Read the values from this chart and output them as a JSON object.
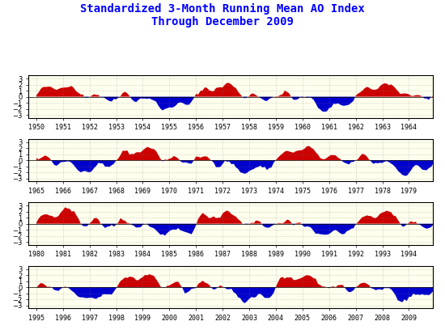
{
  "title_line1": "Standardized 3-Month Running Mean AO Index",
  "title_line2": "Through December 2009",
  "title_color": "blue",
  "title_fontsize": 10,
  "pos_color": "#CC0000",
  "neg_color": "#0000CC",
  "background_color": "#FFFFEE",
  "ylim": [
    -3.5,
    3.5
  ],
  "yticks": [
    -3,
    -2,
    -1,
    0,
    1,
    2,
    3
  ],
  "panels": [
    {
      "start_year": 1950,
      "end_year": 1964,
      "xticks": [
        1950,
        1951,
        1952,
        1953,
        1954,
        1955,
        1956,
        1957,
        1958,
        1959,
        1960,
        1961,
        1962,
        1963,
        1964
      ]
    },
    {
      "start_year": 1965,
      "end_year": 1979,
      "xticks": [
        1965,
        1966,
        1967,
        1968,
        1969,
        1970,
        1971,
        1972,
        1973,
        1974,
        1975,
        1976,
        1977,
        1978,
        1979
      ]
    },
    {
      "start_year": 1980,
      "end_year": 1994,
      "xticks": [
        1980,
        1981,
        1982,
        1983,
        1984,
        1985,
        1986,
        1987,
        1988,
        1989,
        1990,
        1991,
        1992,
        1993,
        1994
      ]
    },
    {
      "start_year": 1995,
      "end_year": 2009,
      "xticks": [
        1995,
        1996,
        1997,
        1998,
        1999,
        2000,
        2001,
        2002,
        2003,
        2004,
        2005,
        2006,
        2007,
        2008,
        2009
      ]
    }
  ]
}
